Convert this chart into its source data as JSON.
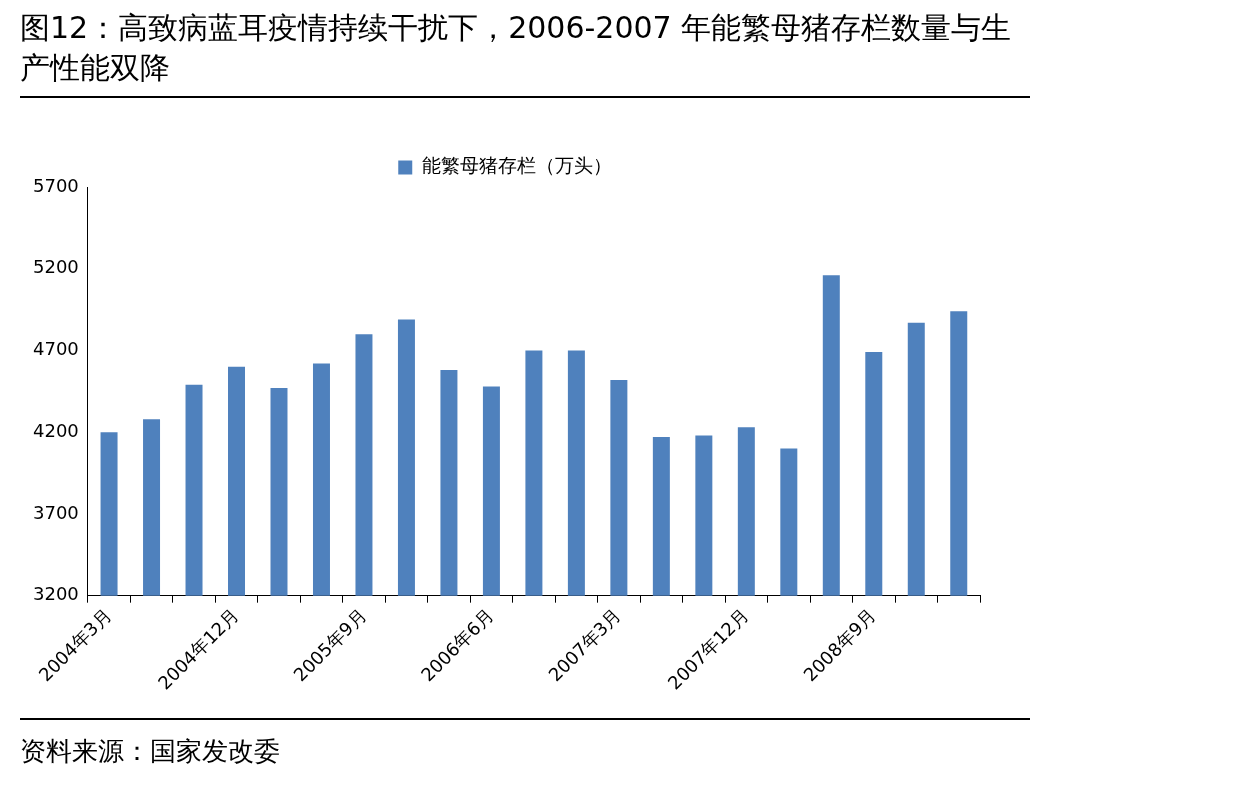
{
  "chart_data": {
    "type": "bar",
    "title": "图12：高致病蓝耳疫情持续干扰下，2006-2007 年能繁母猪存栏数量与生产性能双降",
    "categories": [
      "2004年3月",
      null,
      null,
      "2004年12月",
      null,
      null,
      "2005年9月",
      null,
      null,
      "2006年6月",
      null,
      null,
      "2007年3月",
      null,
      null,
      "2007年12月",
      null,
      null,
      "2008年9月",
      null,
      null
    ],
    "series": [
      {
        "name": "能繁母猪存栏（万头）",
        "color": "#4f81bd",
        "values": [
          4200,
          4280,
          4490,
          4600,
          4470,
          4620,
          4800,
          4890,
          4580,
          4480,
          4700,
          4700,
          4520,
          4170,
          4180,
          4230,
          4100,
          5160,
          4690,
          4870,
          4940
        ]
      }
    ],
    "ylim": [
      3200,
      5700
    ],
    "yticks": [
      3200,
      3700,
      4200,
      4700,
      5200,
      5700
    ],
    "grid": false,
    "legend": "top",
    "annotations": [
      "资料来源：国家发改委"
    ]
  }
}
